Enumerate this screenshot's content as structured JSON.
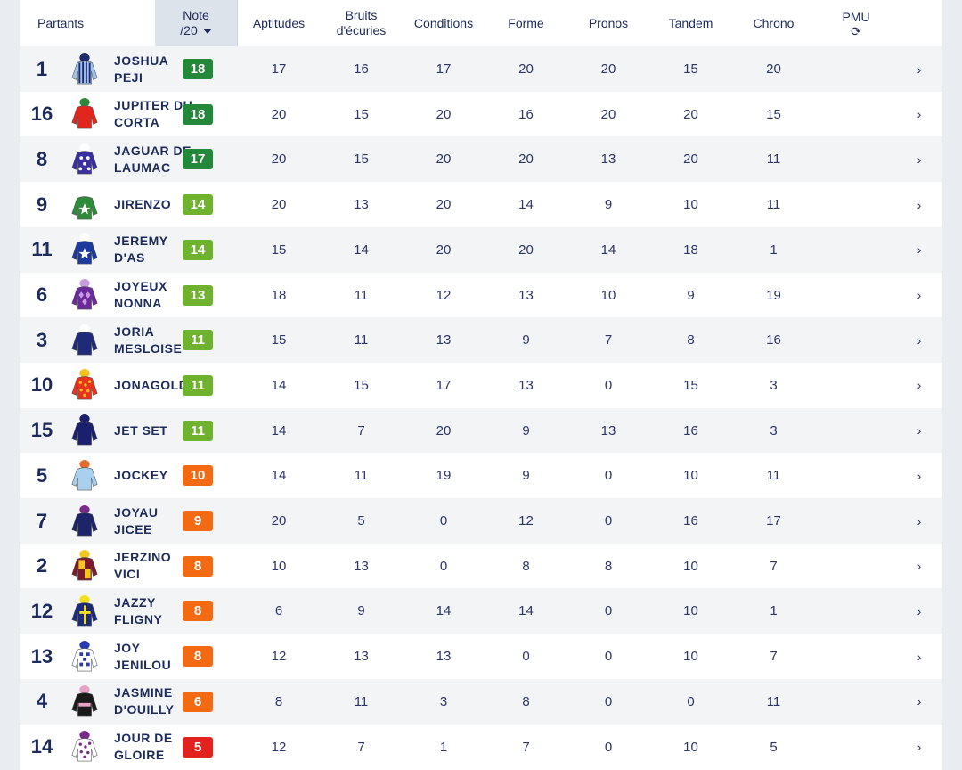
{
  "header": {
    "partants": "Partants",
    "note_line1": "Note",
    "note_line2": "/20",
    "aptitudes": "Aptitudes",
    "bruits_line1": "Bruits",
    "bruits_line2": "d'écuries",
    "conditions": "Conditions",
    "forme": "Forme",
    "pronos": "Pronos",
    "tandem": "Tandem",
    "chrono": "Chrono",
    "pmu": "PMU",
    "refresh_icon": "refresh-icon"
  },
  "colors": {
    "dark_green": "#24883a",
    "light_green": "#6fb22e",
    "orange": "#f46a12",
    "red": "#e4221d"
  },
  "rows": [
    {
      "num": "1",
      "name": "JOSHUA PEJI",
      "note": "18",
      "level": "dark_green",
      "aptitudes": "17",
      "bruits": "16",
      "conditions": "17",
      "forme": "20",
      "pronos": "20",
      "tandem": "15",
      "chrono": "20",
      "silk": [
        "#9fc3ea",
        "#1d2b6e",
        "stripes"
      ]
    },
    {
      "num": "16",
      "name": "JUPITER DU CORTA",
      "note": "18",
      "level": "dark_green",
      "aptitudes": "20",
      "bruits": "15",
      "conditions": "20",
      "forme": "16",
      "pronos": "20",
      "tandem": "20",
      "chrono": "15",
      "silk": [
        "#e2261d",
        "#2a8a3a",
        "plain"
      ]
    },
    {
      "num": "8",
      "name": "JAGUAR DE LAUMAC",
      "note": "17",
      "level": "dark_green",
      "aptitudes": "20",
      "bruits": "15",
      "conditions": "20",
      "forme": "20",
      "pronos": "13",
      "tandem": "20",
      "chrono": "11",
      "silk": [
        "#3b2fa0",
        "#ffffff",
        "stars"
      ]
    },
    {
      "num": "9",
      "name": "JIRENZO",
      "note": "14",
      "level": "light_green",
      "aptitudes": "20",
      "bruits": "13",
      "conditions": "20",
      "forme": "14",
      "pronos": "9",
      "tandem": "10",
      "chrono": "11",
      "silk": [
        "#2f8a3a",
        "#ffffff",
        "star"
      ]
    },
    {
      "num": "11",
      "name": "JEREMY D'AS",
      "note": "14",
      "level": "light_green",
      "aptitudes": "15",
      "bruits": "14",
      "conditions": "20",
      "forme": "20",
      "pronos": "14",
      "tandem": "18",
      "chrono": "1",
      "silk": [
        "#1c3a9e",
        "#ffffff",
        "star"
      ]
    },
    {
      "num": "6",
      "name": "JOYEUX NONNA",
      "note": "13",
      "level": "light_green",
      "aptitudes": "18",
      "bruits": "11",
      "conditions": "12",
      "forme": "13",
      "pronos": "10",
      "tandem": "9",
      "chrono": "19",
      "silk": [
        "#6a2a9a",
        "#c89ae0",
        "diamonds"
      ]
    },
    {
      "num": "3",
      "name": "JORIA MESLOISE",
      "note": "11",
      "level": "light_green",
      "aptitudes": "15",
      "bruits": "11",
      "conditions": "13",
      "forme": "9",
      "pronos": "7",
      "tandem": "8",
      "chrono": "16",
      "silk": [
        "#1f2a78",
        "#ffffff",
        "plain"
      ]
    },
    {
      "num": "10",
      "name": "JONAGOLD",
      "note": "11",
      "level": "light_green",
      "aptitudes": "14",
      "bruits": "15",
      "conditions": "17",
      "forme": "13",
      "pronos": "0",
      "tandem": "15",
      "chrono": "3",
      "silk": [
        "#e8321e",
        "#f3c21a",
        "dots"
      ]
    },
    {
      "num": "15",
      "name": "JET SET",
      "note": "11",
      "level": "light_green",
      "aptitudes": "14",
      "bruits": "7",
      "conditions": "20",
      "forme": "9",
      "pronos": "13",
      "tandem": "16",
      "chrono": "3",
      "silk": [
        "#1a1f6e",
        "#1a1f6e",
        "plain"
      ]
    },
    {
      "num": "5",
      "name": "JOCKEY",
      "note": "10",
      "level": "orange",
      "aptitudes": "14",
      "bruits": "11",
      "conditions": "19",
      "forme": "9",
      "pronos": "0",
      "tandem": "10",
      "chrono": "11",
      "silk": [
        "#a9d0ee",
        "#e86a2a",
        "plain"
      ]
    },
    {
      "num": "7",
      "name": "JOYAU JICEE",
      "note": "9",
      "level": "orange",
      "aptitudes": "20",
      "bruits": "5",
      "conditions": "0",
      "forme": "12",
      "pronos": "0",
      "tandem": "16",
      "chrono": "17",
      "silk": [
        "#1e2468",
        "#7a2a8a",
        "plain"
      ]
    },
    {
      "num": "2",
      "name": "JERZINO VICI",
      "note": "8",
      "level": "orange",
      "aptitudes": "10",
      "bruits": "13",
      "conditions": "0",
      "forme": "8",
      "pronos": "8",
      "tandem": "10",
      "chrono": "7",
      "silk": [
        "#7a1a2a",
        "#f2c61c",
        "quarters"
      ]
    },
    {
      "num": "12",
      "name": "JAZZY FLIGNY",
      "note": "8",
      "level": "orange",
      "aptitudes": "6",
      "bruits": "9",
      "conditions": "14",
      "forme": "14",
      "pronos": "0",
      "tandem": "10",
      "chrono": "1",
      "silk": [
        "#1b2a7a",
        "#f4e01a",
        "cross"
      ]
    },
    {
      "num": "13",
      "name": "JOY JENILOU",
      "note": "8",
      "level": "orange",
      "aptitudes": "12",
      "bruits": "13",
      "conditions": "13",
      "forme": "0",
      "pronos": "0",
      "tandem": "10",
      "chrono": "7",
      "silk": [
        "#ffffff",
        "#2a3ab0",
        "checks"
      ]
    },
    {
      "num": "4",
      "name": "JASMINE D'OUILLY",
      "note": "6",
      "level": "orange",
      "aptitudes": "8",
      "bruits": "11",
      "conditions": "3",
      "forme": "8",
      "pronos": "0",
      "tandem": "0",
      "chrono": "11",
      "silk": [
        "#1a1a1a",
        "#e8a2c6",
        "band"
      ]
    },
    {
      "num": "14",
      "name": "JOUR DE GLOIRE",
      "note": "5",
      "level": "red",
      "aptitudes": "12",
      "bruits": "7",
      "conditions": "1",
      "forme": "7",
      "pronos": "0",
      "tandem": "10",
      "chrono": "5",
      "silk": [
        "#ffffff",
        "#7a2a8a",
        "dots"
      ]
    }
  ]
}
